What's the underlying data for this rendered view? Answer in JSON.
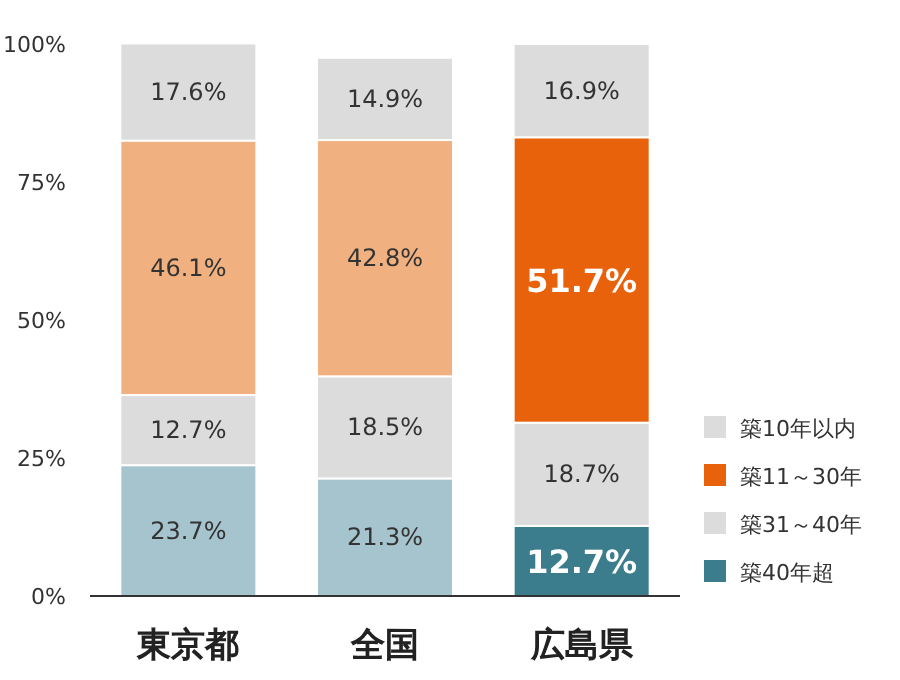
{
  "chart_data": {
    "type": "bar",
    "stacked": true,
    "categories": [
      "東京都",
      "全国",
      "広島県"
    ],
    "ylim": [
      0,
      100
    ],
    "yticks": [
      {
        "value": 0,
        "label": "0%"
      },
      {
        "value": 25,
        "label": "25%"
      },
      {
        "value": 50,
        "label": "50%"
      },
      {
        "value": 75,
        "label": "75%"
      },
      {
        "value": 100,
        "label": "100%"
      }
    ],
    "series": [
      {
        "name": "築40年超",
        "color": "#3b7d8d",
        "colors": [
          "#a6c4cd",
          "#a6c4cd",
          "#3b7d8d"
        ],
        "values": [
          23.7,
          21.3,
          12.7
        ],
        "value_labels": [
          "23.7%",
          "21.3%",
          "12.7%"
        ]
      },
      {
        "name": "築31～40年",
        "color": "#dcdcdc",
        "colors": [
          "#dcdcdc",
          "#dcdcdc",
          "#dcdcdc"
        ],
        "values": [
          12.7,
          18.5,
          18.7
        ],
        "value_labels": [
          "12.7%",
          "18.5%",
          "18.7%"
        ]
      },
      {
        "name": "築11～30年",
        "color": "#e8620c",
        "colors": [
          "#f0b07f",
          "#f0b07f",
          "#e8620c"
        ],
        "values": [
          46.1,
          42.8,
          51.7
        ],
        "value_labels": [
          "46.1%",
          "42.8%",
          "51.7%"
        ]
      },
      {
        "name": "築10年以内",
        "color": "#dcdcdc",
        "colors": [
          "#dcdcdc",
          "#dcdcdc",
          "#dcdcdc"
        ],
        "values": [
          17.6,
          14.9,
          16.9
        ],
        "value_labels": [
          "17.6%",
          "14.9%",
          "16.9%"
        ]
      }
    ],
    "legend": "right",
    "grid": false
  }
}
